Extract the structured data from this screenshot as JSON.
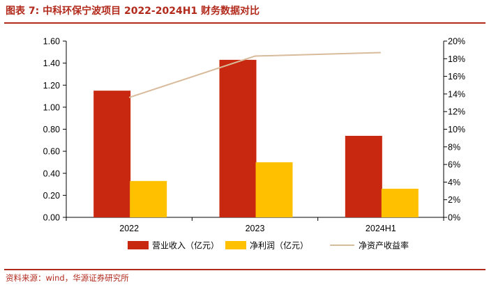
{
  "header": {
    "title": "图表 7: 中科环保宁波项目 2022-2024H1 财务数据对比"
  },
  "footer": {
    "source": "资料来源：wind，华源证券研究所"
  },
  "chart_data": {
    "type": "bar",
    "categories": [
      "2022",
      "2023",
      "2024H1"
    ],
    "series": [
      {
        "name": "营业收入（亿元）",
        "type": "bar",
        "axis": "left",
        "color": "#c8280f",
        "values": [
          1.15,
          1.43,
          0.74
        ]
      },
      {
        "name": "净利润（亿元）",
        "type": "bar",
        "axis": "left",
        "color": "#ffc000",
        "values": [
          0.33,
          0.5,
          0.26
        ]
      },
      {
        "name": "净资产收益率",
        "type": "line",
        "axis": "right",
        "color": "#d8bb9a",
        "values": [
          13.6,
          18.3,
          18.7
        ]
      }
    ],
    "y_left": {
      "ylim": [
        0,
        1.6
      ],
      "ticks": [
        "0.00",
        "0.20",
        "0.40",
        "0.60",
        "0.80",
        "1.00",
        "1.20",
        "1.40",
        "1.60"
      ]
    },
    "y_right": {
      "ylim": [
        0,
        20
      ],
      "ticks": [
        "0%",
        "2%",
        "4%",
        "6%",
        "8%",
        "10%",
        "12%",
        "14%",
        "16%",
        "18%",
        "20%"
      ]
    },
    "grid": false,
    "legend_position": "bottom"
  }
}
